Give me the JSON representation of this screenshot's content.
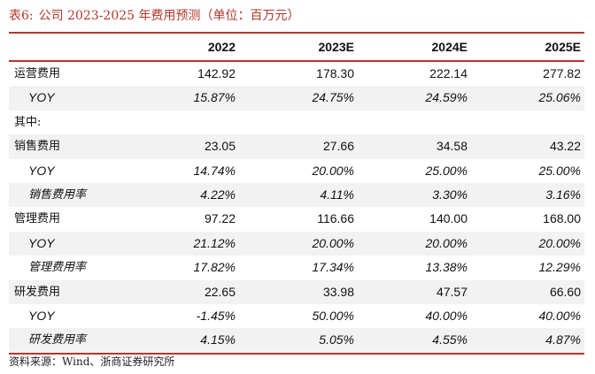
{
  "title": {
    "number": "表6:",
    "text": "公司 2023-2025 年费用预测（单位：百万元）"
  },
  "table": {
    "headers": [
      "2022",
      "2023E",
      "2024E",
      "2025E"
    ],
    "rows": [
      {
        "label": "运营费用",
        "values": [
          "142.92",
          "178.30",
          "222.14",
          "277.82"
        ]
      },
      {
        "label": "YOY",
        "values": [
          "15.87%",
          "24.75%",
          "24.59%",
          "25.06%"
        ]
      },
      {
        "label": "其中:",
        "values": [
          "",
          "",
          "",
          ""
        ]
      },
      {
        "label": "销售费用",
        "values": [
          "23.05",
          "27.66",
          "34.58",
          "43.22"
        ]
      },
      {
        "label": "YOY",
        "values": [
          "14.74%",
          "20.00%",
          "25.00%",
          "25.00%"
        ]
      },
      {
        "label": "销售费用率",
        "values": [
          "4.22%",
          "4.11%",
          "3.30%",
          "3.16%"
        ]
      },
      {
        "label": "管理费用",
        "values": [
          "97.22",
          "116.66",
          "140.00",
          "168.00"
        ]
      },
      {
        "label": "YOY",
        "values": [
          "21.12%",
          "20.00%",
          "20.00%",
          "20.00%"
        ]
      },
      {
        "label": "管理费用率",
        "values": [
          "17.82%",
          "17.34%",
          "13.38%",
          "12.29%"
        ]
      },
      {
        "label": "研发费用",
        "values": [
          "22.65",
          "33.98",
          "47.57",
          "66.60"
        ]
      },
      {
        "label": "YOY",
        "values": [
          "-1.45%",
          "50.00%",
          "40.00%",
          "40.00%"
        ]
      },
      {
        "label": "研发费用率",
        "values": [
          "4.15%",
          "5.05%",
          "4.55%",
          "4.87%"
        ]
      }
    ]
  },
  "source": "资料来源：Wind、浙商证券研究所",
  "colors": {
    "accent": "#b3372b",
    "row_shade": "#f2f2f2"
  }
}
